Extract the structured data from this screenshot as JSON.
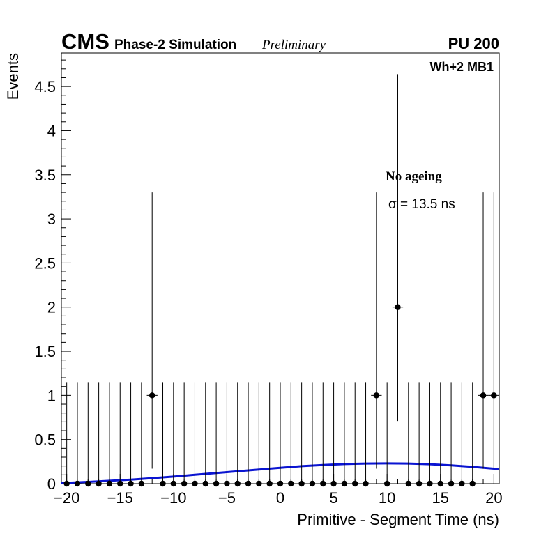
{
  "chart_data": {
    "type": "scatter",
    "header": {
      "experiment": "CMS",
      "subtitle": "Phase-2 Simulation",
      "status": "Preliminary",
      "pileup": "PU 200"
    },
    "chamber_label": "Wh+2 MB1",
    "annotations": {
      "condition": "No ageing",
      "sigma": "σ = 13.5 ns"
    },
    "xlabel": "Primitive - Segment Time (ns)",
    "ylabel": "Events",
    "xlim": [
      -20.5,
      20.5
    ],
    "ylim": [
      0,
      4.88
    ],
    "x_ticks": [
      -20,
      -15,
      -10,
      -5,
      0,
      5,
      10,
      15,
      20
    ],
    "x_tick_labels": [
      "−20",
      "−15",
      "−10",
      "−5",
      "0",
      "5",
      "10",
      "15",
      "20"
    ],
    "y_ticks": [
      0,
      0.5,
      1,
      1.5,
      2,
      2.5,
      3,
      3.5,
      4,
      4.5
    ],
    "y_tick_labels": [
      "0",
      "0.5",
      "1",
      "1.5",
      "2",
      "2.5",
      "3",
      "3.5",
      "4",
      "4.5"
    ],
    "series": [
      {
        "kind": "points",
        "color": "#000000",
        "x": [
          -20,
          -19,
          -18,
          -17,
          -16,
          -15,
          -14,
          -13,
          -12,
          -11,
          -10,
          -9,
          -8,
          -7,
          -6,
          -5,
          -4,
          -3,
          -2,
          -1,
          0,
          1,
          2,
          3,
          4,
          5,
          6,
          7,
          8,
          9,
          10,
          11,
          12,
          13,
          14,
          15,
          16,
          17,
          18,
          19,
          20
        ],
        "y": [
          0,
          0,
          0,
          0,
          0,
          0,
          0,
          0,
          1,
          0,
          0,
          0,
          0,
          0,
          0,
          0,
          0,
          0,
          0,
          0,
          0,
          0,
          0,
          0,
          0,
          0,
          0,
          0,
          0,
          1,
          0,
          2,
          0,
          0,
          0,
          0,
          0,
          0,
          0,
          1,
          1
        ],
        "err_up": [
          1.15,
          1.15,
          1.15,
          1.15,
          1.15,
          1.15,
          1.15,
          1.15,
          2.3,
          1.15,
          1.15,
          1.15,
          1.15,
          1.15,
          1.15,
          1.15,
          1.15,
          1.15,
          1.15,
          1.15,
          1.15,
          1.15,
          1.15,
          1.15,
          1.15,
          1.15,
          1.15,
          1.15,
          1.15,
          2.3,
          1.15,
          2.64,
          1.15,
          1.15,
          1.15,
          1.15,
          1.15,
          1.15,
          1.15,
          2.3,
          2.3
        ],
        "err_down": [
          0,
          0,
          0,
          0,
          0,
          0,
          0,
          0,
          0.83,
          0,
          0,
          0,
          0,
          0,
          0,
          0,
          0,
          0,
          0,
          0,
          0,
          0,
          0,
          0,
          0,
          0,
          0,
          0,
          0,
          0.83,
          0,
          1.29,
          0,
          0,
          0,
          0,
          0,
          0,
          0,
          0.83,
          0.83
        ]
      },
      {
        "kind": "fit",
        "color": "#0a14d2",
        "x": [
          -20.5,
          -20,
          -18,
          -16,
          -14,
          -12,
          -10,
          -8,
          -6,
          -4,
          -2,
          0,
          2,
          4,
          6,
          8,
          10,
          12,
          14,
          16,
          18,
          20,
          20.5
        ],
        "y": [
          0.008,
          0.01,
          0.02,
          0.032,
          0.046,
          0.062,
          0.08,
          0.1,
          0.12,
          0.14,
          0.16,
          0.18,
          0.198,
          0.212,
          0.222,
          0.228,
          0.23,
          0.228,
          0.22,
          0.208,
          0.19,
          0.17,
          0.165
        ]
      }
    ]
  }
}
